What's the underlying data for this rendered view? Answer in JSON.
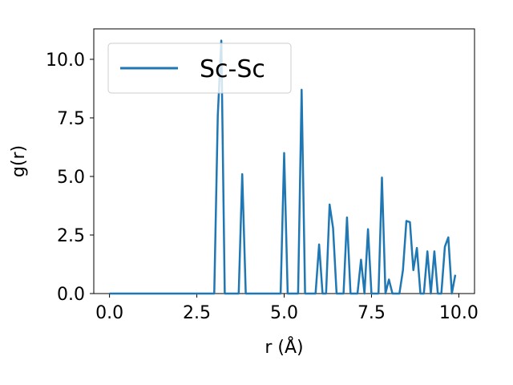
{
  "chart_data": {
    "type": "line",
    "xlabel": "r (Å)",
    "ylabel": "g(r)",
    "xlim": [
      -0.45,
      10.45
    ],
    "ylim": [
      0,
      11.3
    ],
    "xticks": [
      0.0,
      2.5,
      5.0,
      7.5,
      10.0
    ],
    "xtick_labels": [
      "0.0",
      "2.5",
      "5.0",
      "7.5",
      "10.0"
    ],
    "yticks": [
      0.0,
      2.5,
      5.0,
      7.5,
      10.0
    ],
    "ytick_labels": [
      "0.0",
      "2.5",
      "5.0",
      "7.5",
      "10.0"
    ],
    "grid": false,
    "legend": "upper-left",
    "series": [
      {
        "name": "Sc-Sc",
        "color": "#1f77b4",
        "x": [
          0.0,
          3.0,
          3.1,
          3.2,
          3.3,
          3.7,
          3.8,
          3.9,
          4.9,
          5.0,
          5.1,
          5.4,
          5.5,
          5.6,
          5.9,
          6.0,
          6.1,
          6.2,
          6.3,
          6.4,
          6.5,
          6.7,
          6.8,
          6.9,
          7.1,
          7.2,
          7.3,
          7.4,
          7.5,
          7.7,
          7.8,
          7.9,
          8.0,
          8.1,
          8.3,
          8.4,
          8.5,
          8.6,
          8.7,
          8.8,
          8.9,
          9.0,
          9.1,
          9.2,
          9.3,
          9.4,
          9.5,
          9.6,
          9.7,
          9.8,
          9.9
        ],
        "y": [
          0.0,
          0.0,
          7.6,
          10.8,
          0.0,
          0.0,
          5.1,
          0.0,
          0.0,
          6.0,
          0.0,
          0.0,
          8.7,
          0.0,
          0.0,
          2.1,
          0.0,
          0.0,
          3.8,
          2.8,
          0.0,
          0.0,
          3.25,
          0.0,
          0.0,
          1.45,
          0.0,
          2.75,
          0.0,
          0.0,
          4.95,
          0.0,
          0.6,
          0.0,
          0.0,
          1.0,
          3.1,
          3.05,
          1.0,
          1.95,
          0.0,
          0.0,
          1.8,
          0.0,
          1.8,
          0.0,
          0.0,
          2.0,
          2.4,
          0.0,
          0.8
        ]
      }
    ]
  }
}
